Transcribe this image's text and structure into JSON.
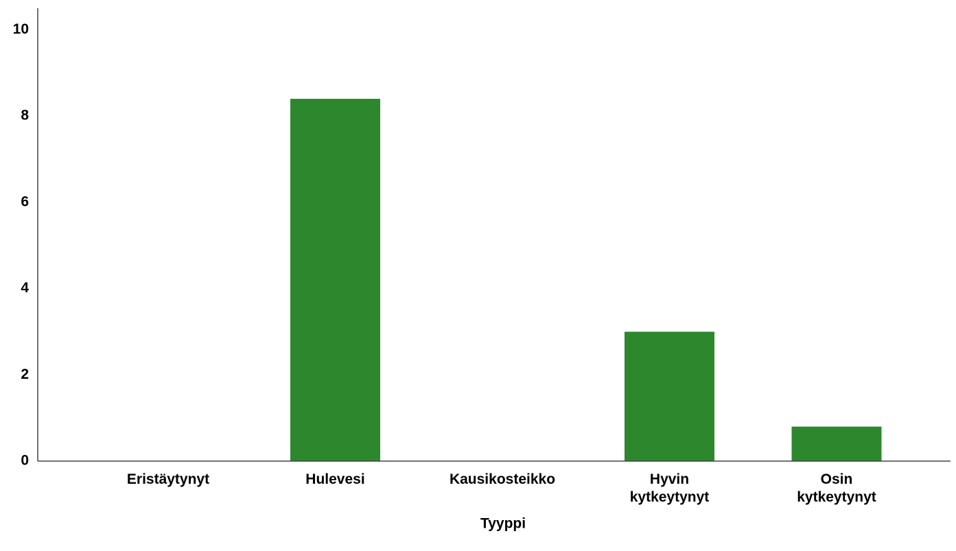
{
  "chart_data": {
    "type": "bar",
    "x_label": "Tyyppi",
    "categories": [
      "Eristäytynyt",
      "Hulevesi",
      "Kausikosteikko",
      "Hyvin\nkytkeytynyt",
      "Osin\nkytkeytynyt"
    ],
    "values": [
      0,
      8.4,
      0,
      3.0,
      0.8
    ],
    "color": "#2d882d",
    "ylim": [
      0,
      10.5
    ],
    "yticks": [
      0,
      2,
      4,
      6,
      8,
      10
    ],
    "grid": false
  }
}
